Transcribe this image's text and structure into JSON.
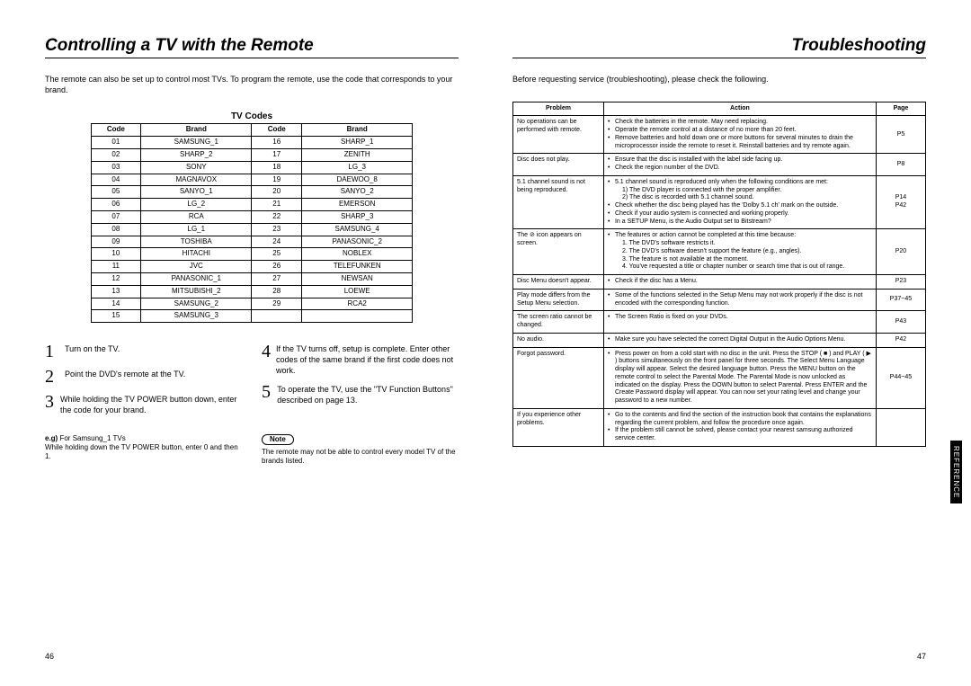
{
  "left": {
    "title": "Controlling a TV with the Remote",
    "intro": "The remote can also be set up to control most TVs. To program the remote, use the code that corresponds to your brand.",
    "tvcodes_title": "TV Codes",
    "headers": {
      "code": "Code",
      "brand": "Brand"
    },
    "codes_a": [
      [
        "01",
        "SAMSUNG_1"
      ],
      [
        "02",
        "SHARP_2"
      ],
      [
        "03",
        "SONY"
      ],
      [
        "04",
        "MAGNAVOX"
      ],
      [
        "05",
        "SANYO_1"
      ],
      [
        "06",
        "LG_2"
      ],
      [
        "07",
        "RCA"
      ],
      [
        "08",
        "LG_1"
      ],
      [
        "09",
        "TOSHIBA"
      ],
      [
        "10",
        "HITACHI"
      ],
      [
        "11",
        "JVC"
      ],
      [
        "12",
        "PANASONIC_1"
      ],
      [
        "13",
        "MITSUBISHI_2"
      ],
      [
        "14",
        "SAMSUNG_2"
      ],
      [
        "15",
        "SAMSUNG_3"
      ]
    ],
    "codes_b": [
      [
        "16",
        "SHARP_1"
      ],
      [
        "17",
        "ZENITH"
      ],
      [
        "18",
        "LG_3"
      ],
      [
        "19",
        "DAEWOO_8"
      ],
      [
        "20",
        "SANYO_2"
      ],
      [
        "21",
        "EMERSON"
      ],
      [
        "22",
        "SHARP_3"
      ],
      [
        "23",
        "SAMSUNG_4"
      ],
      [
        "24",
        "PANASONIC_2"
      ],
      [
        "25",
        "NOBLEX"
      ],
      [
        "26",
        "TELEFUNKEN"
      ],
      [
        "27",
        "NEWSAN"
      ],
      [
        "28",
        "LOEWE"
      ],
      [
        "29",
        "RCA2"
      ]
    ],
    "steps": [
      "Turn on the TV.",
      "Point the DVD's remote at the TV.",
      "While holding the TV POWER button down, enter the code for your brand.",
      "If the TV turns off, setup is complete.\nEnter other codes of the same brand if the first code does not work.",
      "To operate the TV, use the \"TV Function Buttons\" described on page 13."
    ],
    "eg_label": "e.g)",
    "eg_title": "For Samsung_1 TVs",
    "eg_body": "While holding down the TV POWER button, enter 0 and then 1.",
    "note_label": "Note",
    "note_body": "The remote may not be able to control every model TV of the brands listed.",
    "pagenum": "46"
  },
  "right": {
    "title": "Troubleshooting",
    "intro": "Before requesting service (troubleshooting), please check the following.",
    "headers": {
      "problem": "Problem",
      "action": "Action",
      "page": "Page"
    },
    "rows": [
      {
        "problem": "No operations can be performed with remote.",
        "actions": [
          "Check the batteries in the remote. May need replacing.",
          "Operate the remote control at a distance of no more than 20 feet.",
          "Remove batteries and hold down one or more buttons for several minutes to drain the microprocessor inside the remote to reset it. Reinstall batteries and try remote again."
        ],
        "page": "P5"
      },
      {
        "problem": "Disc does not play.",
        "actions": [
          "Ensure that the disc is installed with the label side facing up.",
          "Check the region number of the DVD."
        ],
        "page": "P8"
      },
      {
        "problem": "5.1 channel sound is not being reproduced.",
        "actions": [
          "5.1 channel sound is reproduced only when the following conditions are met:\n1) The DVD player is connected with the proper amplifier.\n2) The disc is recorded with 5.1 channel sound.",
          "Check whether the disc being played has the 'Dolby 5.1 ch' mark on the outside.",
          "Check if your audio system is connected and working properly.",
          "In a SETUP Menu, is the Audio Output set to Bitstream?"
        ],
        "page": "P14\nP42"
      },
      {
        "problem": "The ⊘ icon appears on screen.",
        "actions": [
          "The features or action cannot be completed at this time because:\n1. The DVD's software restricts it.\n2. The DVD's software doesn't support the feature (e.g., angles).\n3. The feature is not available at the moment.\n4. You've requested a title or chapter number or search time that is out of range."
        ],
        "page": "P20"
      },
      {
        "problem": "Disc Menu doesn't appear.",
        "actions": [
          "Check if the disc has a Menu."
        ],
        "page": "P23"
      },
      {
        "problem": "Play mode differs from the Setup Menu selection.",
        "actions": [
          "Some of the functions selected in the Setup Menu may not work properly if the disc is not encoded with the corresponding function."
        ],
        "page": "P37~45"
      },
      {
        "problem": "The screen ratio cannot be changed.",
        "actions": [
          "The Screen Ratio is fixed on your DVDs."
        ],
        "page": "P43"
      },
      {
        "problem": "No audio.",
        "actions": [
          "Make sure you have selected the correct Digital Output in the Audio Options Menu."
        ],
        "page": "P42"
      },
      {
        "problem": "Forgot password.",
        "actions": [
          "Press power on from a cold start with no disc in the unit. Press the STOP ( ■ ) and PLAY ( ▶ ) buttons simultaneously on the front panel for three seconds. The Select Menu Language display will appear. Select the desired language button. Press the MENU button on the remote control to select the Parental Mode. The Parental Mode is now unlocked as indicated on the display. Press the DOWN button to select Parental. Press ENTER and the Create Password display will appear. You can now set your rating level and change your password to a new number."
        ],
        "page": "P44~45"
      },
      {
        "problem": "If you experience other problems.",
        "actions": [
          "Go to the contents and find the section of the instruction book that contains the explanations regarding the current problem, and follow the procedure once again.",
          "If the problem still cannot be solved, please contact your nearest samsung authorized service center."
        ],
        "page": ""
      }
    ],
    "sidetab": "REFERENCE",
    "pagenum": "47"
  }
}
